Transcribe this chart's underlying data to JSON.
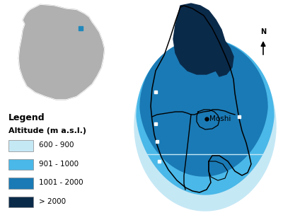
{
  "background_color": "#ffffff",
  "altitude_colors": {
    "600-900": "#c5e8f5",
    "901-1000": "#4ab8e8",
    "1001-2000": "#1a7ab5",
    "2000+": "#0a2a4a"
  },
  "legend_title": "Legend",
  "legend_subtitle": "Altitude (m a.s.l.)",
  "legend_labels": [
    "600 - 900",
    "901 - 1000",
    "1001 - 2000",
    "> 2000"
  ],
  "legend_colors": [
    "#c5e8f5",
    "#4ab8e8",
    "#1a7ab5",
    "#0a2a4a"
  ],
  "moshi_label": "Moshi",
  "north_arrow_label": "N",
  "inset_bg": "#b0b0b0",
  "inset_highlight": "#2288bb"
}
